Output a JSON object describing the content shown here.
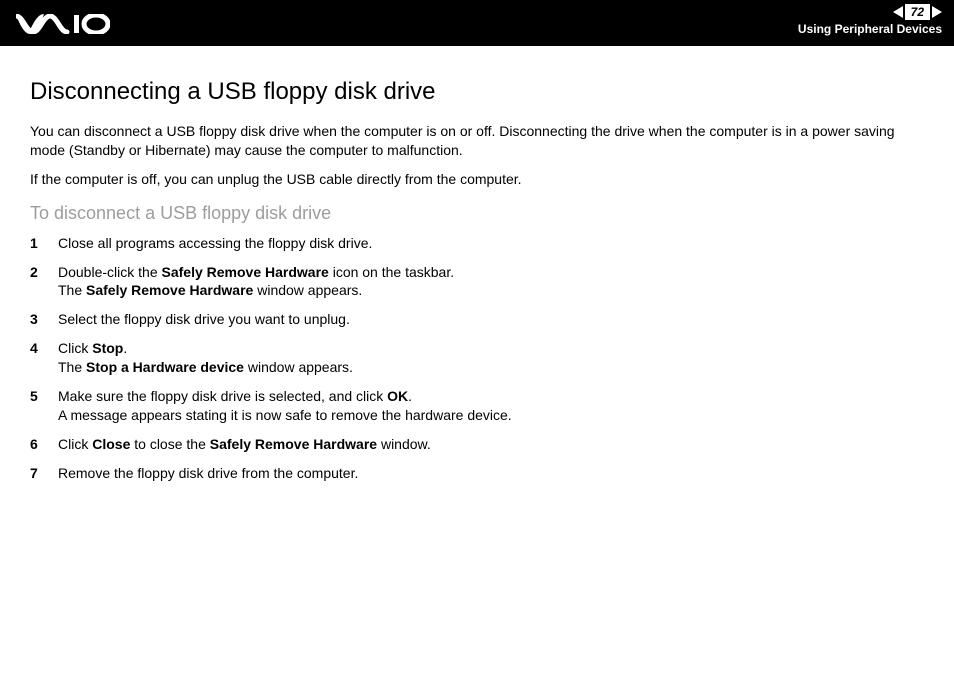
{
  "header": {
    "page_number": "72",
    "section": "Using Peripheral Devices"
  },
  "content": {
    "title": "Disconnecting a USB floppy disk drive",
    "para1": "You can disconnect a USB floppy disk drive when the computer is on or off. Disconnecting the drive when the computer is in a power saving mode (Standby or Hibernate) may cause the computer to malfunction.",
    "para2": "If the computer is off, you can unplug the USB cable directly from the computer.",
    "subheading": "To disconnect a USB floppy disk drive",
    "steps": [
      {
        "n": "1",
        "html": "Close all programs accessing the floppy disk drive."
      },
      {
        "n": "2",
        "html": "Double-click the <b>Safely Remove Hardware</b> icon on the taskbar.<br>The <b>Safely Remove Hardware</b> window appears."
      },
      {
        "n": "3",
        "html": "Select the floppy disk drive you want to unplug."
      },
      {
        "n": "4",
        "html": "Click <b>Stop</b>.<br>The <b>Stop a Hardware device</b> window appears."
      },
      {
        "n": "5",
        "html": "Make sure the floppy disk drive is selected, and click <b>OK</b>.<br>A message appears stating it is now safe to remove the hardware device."
      },
      {
        "n": "6",
        "html": "Click <b>Close</b> to close the <b>Safely Remove Hardware</b> window."
      },
      {
        "n": "7",
        "html": "Remove the floppy disk drive from the computer."
      }
    ]
  },
  "colors": {
    "header_bg": "#000000",
    "header_text": "#ffffff",
    "body_text": "#000000",
    "subheading_text": "#9d9d9d",
    "background": "#ffffff"
  },
  "fonts": {
    "title_size_pt": 24,
    "body_size_pt": 14,
    "subheading_size_pt": 18,
    "header_section_size_pt": 12
  }
}
